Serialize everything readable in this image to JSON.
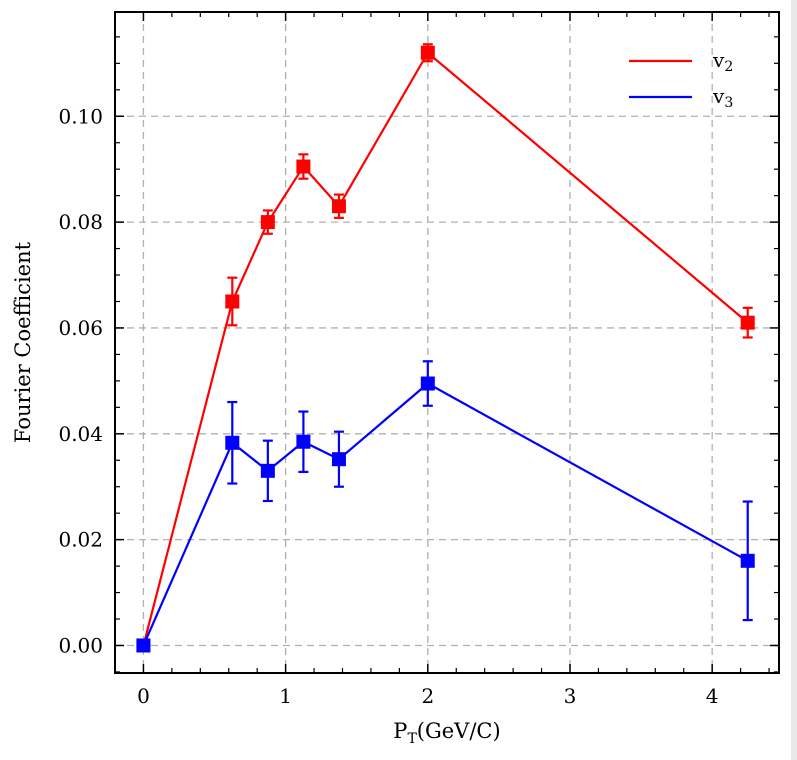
{
  "chart_data": {
    "type": "line",
    "xlabel": "P",
    "xlabel_sub": "T",
    "xlabel_rest": "(GeV/C)",
    "ylabel": "Fourier Coefficient",
    "xlim": [
      -0.2,
      4.47
    ],
    "ylim": [
      -0.0052,
      0.1197
    ],
    "x_ticks": [
      0,
      1,
      2,
      3,
      4
    ],
    "x_tick_labels": [
      "0",
      "1",
      "2",
      "3",
      "4"
    ],
    "y_ticks": [
      0.0,
      0.02,
      0.04,
      0.06,
      0.08,
      0.1
    ],
    "y_tick_labels": [
      "0.00",
      "0.02",
      "0.04",
      "0.06",
      "0.08",
      "0.10"
    ],
    "grid": true,
    "legend_position": "top-right",
    "x": [
      0,
      0.625,
      0.875,
      1.125,
      1.375,
      2.0,
      4.25
    ],
    "series": [
      {
        "name": "v",
        "name_sub": "2",
        "color": "#ff0000",
        "values": [
          0.0,
          0.065,
          0.08,
          0.0905,
          0.083,
          0.112,
          0.061
        ],
        "errors": [
          0.0,
          0.0045,
          0.0022,
          0.0023,
          0.0022,
          0.0016,
          0.0028
        ]
      },
      {
        "name": "v",
        "name_sub": "3",
        "color": "#0000ff",
        "values": [
          0.0,
          0.0383,
          0.033,
          0.0385,
          0.0352,
          0.0495,
          0.016
        ],
        "errors": [
          0.0,
          0.0077,
          0.0057,
          0.0057,
          0.0052,
          0.0042,
          0.0112
        ]
      }
    ]
  }
}
